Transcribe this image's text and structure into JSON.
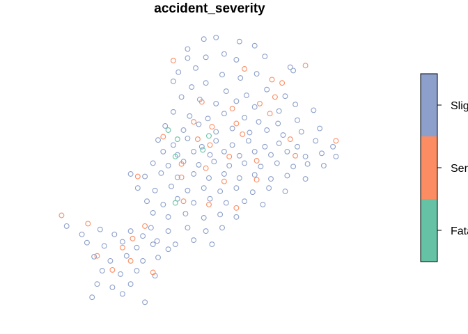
{
  "chart_data": {
    "type": "scatter",
    "title": "accident_severity",
    "legend": {
      "placement": "right",
      "entries": [
        "Fatal",
        "Serious",
        "Slight"
      ],
      "visible_text": [
        "Fata",
        "Ser",
        "Slig"
      ]
    },
    "colors": {
      "Fatal": "#66C2A5",
      "Serious": "#FC8D62",
      "Slight": "#8DA0CB"
    },
    "grid": false,
    "axes_shown": false,
    "series": [
      {
        "name": "Fatal",
        "points": [
          [
            -1.575,
            53.838
          ],
          [
            -1.535,
            53.831
          ],
          [
            -1.568,
            53.806
          ],
          [
            -1.541,
            53.814
          ],
          [
            -1.568,
            53.75
          ],
          [
            -1.566,
            53.827
          ]
        ]
      },
      {
        "name": "Serious",
        "points": [
          [
            -1.57,
            53.922
          ],
          [
            -1.5,
            53.912
          ],
          [
            -1.473,
            53.899
          ],
          [
            -1.463,
            53.895
          ],
          [
            -1.44,
            53.916
          ],
          [
            -1.542,
            53.872
          ],
          [
            -1.512,
            53.864
          ],
          [
            -1.47,
            53.878
          ],
          [
            -1.485,
            53.87
          ],
          [
            -1.55,
            53.848
          ],
          [
            -1.532,
            53.842
          ],
          [
            -1.508,
            53.846
          ],
          [
            -1.475,
            53.858
          ],
          [
            -1.58,
            53.83
          ],
          [
            -1.546,
            53.827
          ],
          [
            -1.534,
            53.82
          ],
          [
            -1.502,
            53.833
          ],
          [
            -1.455,
            53.827
          ],
          [
            -1.41,
            53.825
          ],
          [
            -1.562,
            53.797
          ],
          [
            -1.538,
            53.792
          ],
          [
            -1.515,
            53.806
          ],
          [
            -1.488,
            53.801
          ],
          [
            -1.45,
            53.807
          ],
          [
            -1.605,
            53.782
          ],
          [
            -1.562,
            53.781
          ],
          [
            -1.52,
            53.776
          ],
          [
            -1.488,
            53.778
          ],
          [
            -1.56,
            53.752
          ],
          [
            -1.535,
            53.748
          ],
          [
            -1.508,
            53.744
          ],
          [
            -1.68,
            53.735
          ],
          [
            -1.654,
            53.725
          ],
          [
            -1.598,
            53.722
          ],
          [
            -1.61,
            53.707
          ],
          [
            -1.645,
            53.686
          ],
          [
            -1.612,
            53.68
          ],
          [
            -1.59,
            53.666
          ],
          [
            -1.63,
            53.669
          ],
          [
            -1.62,
            53.696
          ]
        ]
      },
      {
        "name": "Slight",
        "points": [
          [
            -1.54,
            53.948
          ],
          [
            -1.528,
            53.95
          ],
          [
            -1.556,
            53.936
          ],
          [
            -1.505,
            53.945
          ],
          [
            -1.49,
            53.94
          ],
          [
            -1.52,
            53.93
          ],
          [
            -1.556,
            53.925
          ],
          [
            -1.538,
            53.926
          ],
          [
            -1.508,
            53.923
          ],
          [
            -1.48,
            53.927
          ],
          [
            -1.455,
            53.914
          ],
          [
            -1.565,
            53.908
          ],
          [
            -1.548,
            53.913
          ],
          [
            -1.522,
            53.905
          ],
          [
            -1.504,
            53.901
          ],
          [
            -1.488,
            53.906
          ],
          [
            -1.452,
            53.91
          ],
          [
            -1.57,
            53.897
          ],
          [
            -1.552,
            53.89
          ],
          [
            -1.538,
            53.895
          ],
          [
            -1.518,
            53.885
          ],
          [
            -1.498,
            53.88
          ],
          [
            -1.478,
            53.887
          ],
          [
            -1.46,
            53.879
          ],
          [
            -1.562,
            53.878
          ],
          [
            -1.544,
            53.875
          ],
          [
            -1.528,
            53.87
          ],
          [
            -1.508,
            53.873
          ],
          [
            -1.49,
            53.866
          ],
          [
            -1.466,
            53.861
          ],
          [
            -1.45,
            53.869
          ],
          [
            -1.57,
            53.86
          ],
          [
            -1.554,
            53.855
          ],
          [
            -1.536,
            53.852
          ],
          [
            -1.52,
            53.858
          ],
          [
            -1.5,
            53.853
          ],
          [
            -1.486,
            53.848
          ],
          [
            -1.467,
            53.846
          ],
          [
            -1.448,
            53.85
          ],
          [
            -1.432,
            53.862
          ],
          [
            -1.578,
            53.843
          ],
          [
            -1.56,
            53.838
          ],
          [
            -1.545,
            53.845
          ],
          [
            -1.528,
            53.836
          ],
          [
            -1.512,
            53.84
          ],
          [
            -1.495,
            53.835
          ],
          [
            -1.478,
            53.838
          ],
          [
            -1.462,
            53.832
          ],
          [
            -1.444,
            53.836
          ],
          [
            -1.426,
            53.84
          ],
          [
            -1.585,
            53.826
          ],
          [
            -1.57,
            53.82
          ],
          [
            -1.556,
            53.828
          ],
          [
            -1.542,
            53.818
          ],
          [
            -1.528,
            53.825
          ],
          [
            -1.512,
            53.82
          ],
          [
            -1.496,
            53.825
          ],
          [
            -1.48,
            53.818
          ],
          [
            -1.466,
            53.822
          ],
          [
            -1.448,
            53.818
          ],
          [
            -1.43,
            53.825
          ],
          [
            -1.413,
            53.818
          ],
          [
            -1.58,
            53.812
          ],
          [
            -1.566,
            53.808
          ],
          [
            -1.55,
            53.812
          ],
          [
            -1.534,
            53.808
          ],
          [
            -1.52,
            53.812
          ],
          [
            -1.505,
            53.807
          ],
          [
            -1.49,
            53.812
          ],
          [
            -1.474,
            53.808
          ],
          [
            -1.458,
            53.812
          ],
          [
            -1.44,
            53.806
          ],
          [
            -1.424,
            53.81
          ],
          [
            -1.41,
            53.806
          ],
          [
            -1.59,
            53.798
          ],
          [
            -1.575,
            53.795
          ],
          [
            -1.56,
            53.8
          ],
          [
            -1.545,
            53.796
          ],
          [
            -1.53,
            53.8
          ],
          [
            -1.515,
            53.795
          ],
          [
            -1.5,
            53.798
          ],
          [
            -1.484,
            53.794
          ],
          [
            -1.468,
            53.798
          ],
          [
            -1.452,
            53.794
          ],
          [
            -1.438,
            53.797
          ],
          [
            -1.422,
            53.795
          ],
          [
            -1.612,
            53.785
          ],
          [
            -1.598,
            53.782
          ],
          [
            -1.582,
            53.786
          ],
          [
            -1.566,
            53.781
          ],
          [
            -1.55,
            53.785
          ],
          [
            -1.535,
            53.78
          ],
          [
            -1.52,
            53.785
          ],
          [
            -1.505,
            53.78
          ],
          [
            -1.49,
            53.784
          ],
          [
            -1.474,
            53.779
          ],
          [
            -1.458,
            53.783
          ],
          [
            -1.44,
            53.779
          ],
          [
            -1.605,
            53.768
          ],
          [
            -1.588,
            53.765
          ],
          [
            -1.572,
            53.77
          ],
          [
            -1.556,
            53.765
          ],
          [
            -1.54,
            53.768
          ],
          [
            -1.524,
            53.764
          ],
          [
            -1.508,
            53.768
          ],
          [
            -1.492,
            53.763
          ],
          [
            -1.476,
            53.768
          ],
          [
            -1.46,
            53.764
          ],
          [
            -1.596,
            53.752
          ],
          [
            -1.58,
            53.748
          ],
          [
            -1.566,
            53.755
          ],
          [
            -1.55,
            53.75
          ],
          [
            -1.534,
            53.755
          ],
          [
            -1.518,
            53.75
          ],
          [
            -1.5,
            53.752
          ],
          [
            -1.482,
            53.748
          ],
          [
            -1.59,
            53.738
          ],
          [
            -1.575,
            53.733
          ],
          [
            -1.558,
            53.737
          ],
          [
            -1.54,
            53.732
          ],
          [
            -1.524,
            53.736
          ],
          [
            -1.508,
            53.733
          ],
          [
            -1.592,
            53.72
          ],
          [
            -1.575,
            53.716
          ],
          [
            -1.556,
            53.72
          ],
          [
            -1.538,
            53.716
          ],
          [
            -1.522,
            53.72
          ],
          [
            -1.586,
            53.704
          ],
          [
            -1.568,
            53.7
          ],
          [
            -1.55,
            53.705
          ],
          [
            -1.532,
            53.7
          ],
          [
            -1.675,
            53.722
          ],
          [
            -1.66,
            53.712
          ],
          [
            -1.642,
            53.718
          ],
          [
            -1.628,
            53.712
          ],
          [
            -1.612,
            53.716
          ],
          [
            -1.6,
            53.71
          ],
          [
            -1.655,
            53.702
          ],
          [
            -1.638,
            53.698
          ],
          [
            -1.62,
            53.703
          ],
          [
            -1.606,
            53.696
          ],
          [
            -1.59,
            53.7
          ],
          [
            -1.575,
            53.694
          ],
          [
            -1.648,
            53.685
          ],
          [
            -1.632,
            53.68
          ],
          [
            -1.616,
            53.686
          ],
          [
            -1.6,
            53.68
          ],
          [
            -1.585,
            53.684
          ],
          [
            -1.64,
            53.668
          ],
          [
            -1.622,
            53.664
          ],
          [
            -1.606,
            53.668
          ],
          [
            -1.588,
            53.662
          ],
          [
            -1.645,
            53.652
          ],
          [
            -1.63,
            53.648
          ],
          [
            -1.612,
            53.652
          ],
          [
            -1.65,
            53.636
          ],
          [
            -1.62,
            53.64
          ],
          [
            -1.598,
            53.63
          ]
        ]
      }
    ],
    "xlim": [
      -1.72,
      -1.35
    ],
    "ylim": [
      53.6,
      53.97
    ]
  }
}
